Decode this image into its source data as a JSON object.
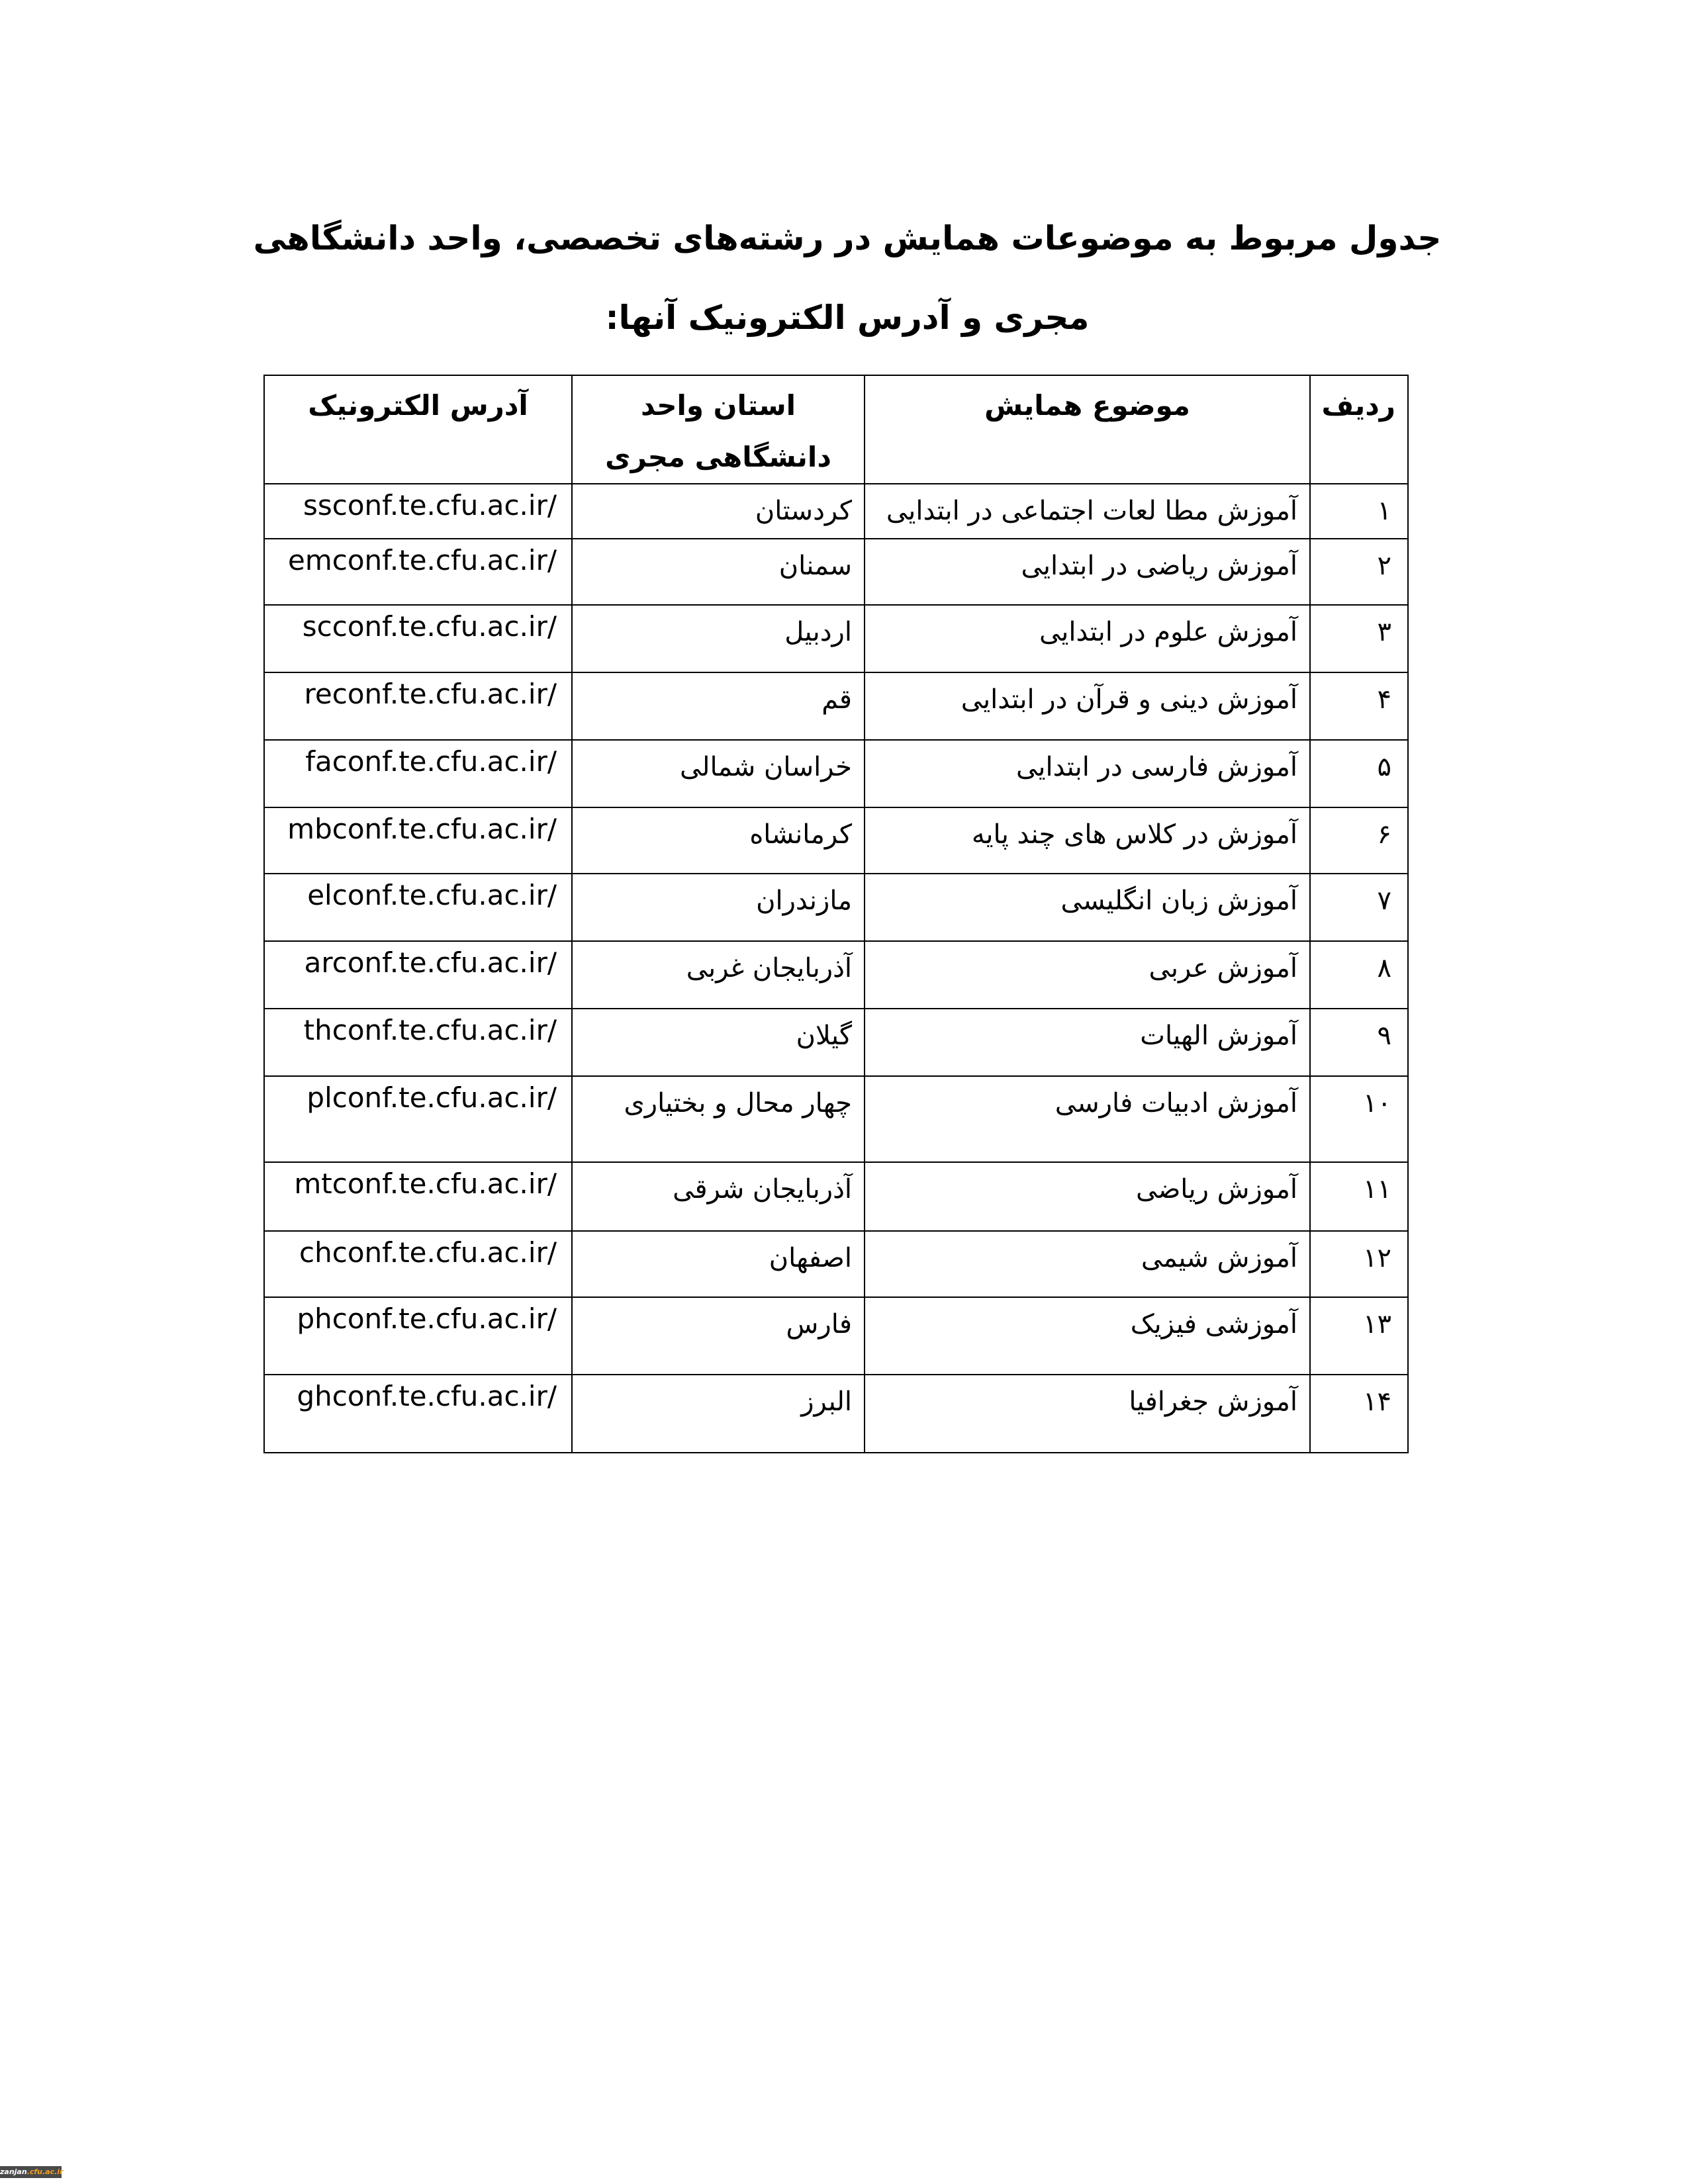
{
  "title": "جدول مربوط به موضوعات همایش در رشته‌های تخصصی، واحد دانشگاهی مجری و آدرس الکترونیک آنها:",
  "table": {
    "headers": [
      "ردیف",
      "موضوع همایش",
      "استان واحد دانشگاهی مجری",
      "آدرس الکترونیک"
    ],
    "rows": [
      {
        "num": "۱",
        "topic": "آموزش مطا لعات اجتماعی در ابتدایی",
        "province": "کردستان",
        "url": "ssconf.te.cfu.ac.ir/"
      },
      {
        "num": "۲",
        "topic": "آموزش ریاضی در ابتدایی",
        "province": "سمنان",
        "url": "emconf.te.cfu.ac.ir/"
      },
      {
        "num": "۳",
        "topic": "آموزش علوم در ابتدایی",
        "province": "اردبیل",
        "url": "scconf.te.cfu.ac.ir/"
      },
      {
        "num": "۴",
        "topic": "آموزش دینی و قرآن در ابتدایی",
        "province": "قم",
        "url": "reconf.te.cfu.ac.ir/"
      },
      {
        "num": "۵",
        "topic": "آموزش فارسی در ابتدایی",
        "province": "خراسان شمالی",
        "url": "faconf.te.cfu.ac.ir/"
      },
      {
        "num": "۶",
        "topic": "آموزش در کلاس های چند پایه",
        "province": "کرمانشاه",
        "url": "mbconf.te.cfu.ac.ir/"
      },
      {
        "num": "۷",
        "topic": "آموزش زبان انگلیسی",
        "province": "مازندران",
        "url": "elconf.te.cfu.ac.ir/"
      },
      {
        "num": "۸",
        "topic": "آموزش عربی",
        "province": "آذربایجان غربی",
        "url": "arconf.te.cfu.ac.ir/"
      },
      {
        "num": "۹",
        "topic": "آموزش الهیات",
        "province": "گیلان",
        "url": "thconf.te.cfu.ac.ir/"
      },
      {
        "num": "۱۰",
        "topic": "آموزش ادبیات فارسی",
        "province": "چهار محال و بختیاری",
        "url": "plconf.te.cfu.ac.ir/"
      },
      {
        "num": "۱۱",
        "topic": "آموزش ریاضی",
        "province": "آذربایجان شرقی",
        "url": "mtconf.te.cfu.ac.ir/"
      },
      {
        "num": "۱۲",
        "topic": "آموزش شیمی",
        "province": "اصفهان",
        "url": "chconf.te.cfu.ac.ir/"
      },
      {
        "num": "۱۳",
        "topic": "آموزشی فیزیک",
        "province": "فارس",
        "url": "phconf.te.cfu.ac.ir/"
      },
      {
        "num": "۱۴",
        "topic": "آموزش جغرافیا",
        "province": "البرز",
        "url": "ghconf.te.cfu.ac.ir/"
      }
    ]
  },
  "watermark": {
    "prefix": "zanjan",
    "suffix": ".cfu.ac.ir",
    "accent": "#f0a020"
  }
}
